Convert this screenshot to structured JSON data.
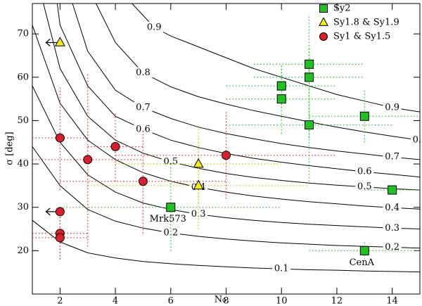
{
  "chart_data": {
    "type": "scatter",
    "x_label": "N₀",
    "y_label": "σ [deg]",
    "xlim": [
      1,
      15
    ],
    "ylim": [
      10,
      77
    ],
    "xticks": [
      2,
      4,
      6,
      8,
      10,
      12,
      14
    ],
    "yticks": [
      20,
      30,
      40,
      50,
      60,
      70
    ],
    "legend": "upper right",
    "contours": [
      {
        "level": 0.9,
        "x": [
          4.6,
          5.4,
          6,
          7,
          8,
          9,
          10,
          11,
          12,
          13,
          14,
          15
        ],
        "y": [
          77,
          71.5,
          69.5,
          67,
          64.5,
          62,
          60,
          58,
          56,
          54.5,
          53,
          52
        ]
      },
      {
        "level": 0.8,
        "x": [
          3.3,
          4,
          5,
          6,
          7,
          8,
          9,
          10,
          11,
          12,
          13,
          14,
          15
        ],
        "y": [
          77,
          68,
          61,
          57.8,
          55.5,
          53.8,
          52.3,
          51,
          49.7,
          48.5,
          47.4,
          46.4,
          45.5
        ]
      },
      {
        "level": 0.7,
        "x": [
          2.45,
          3,
          4,
          5,
          6,
          7,
          8,
          9,
          10,
          11,
          12,
          13,
          14,
          15
        ],
        "y": [
          77,
          66,
          57,
          53,
          50.5,
          48.5,
          47,
          45.8,
          44.7,
          43.8,
          43,
          42.3,
          41.6,
          41
        ]
      },
      {
        "level": 0.6,
        "x": [
          1.9,
          2,
          3,
          4,
          5,
          6,
          7,
          8,
          9,
          10,
          11,
          12,
          13,
          14,
          15
        ],
        "y": [
          77,
          72,
          58,
          51,
          48,
          45.5,
          43.8,
          42.4,
          41.3,
          40.4,
          39.6,
          38.9,
          38.2,
          37.6,
          37
        ]
      },
      {
        "level": 0.5,
        "x": [
          1.4,
          2,
          3,
          4,
          5,
          6,
          7,
          8,
          9,
          10,
          11,
          12,
          13,
          14,
          15
        ],
        "y": [
          77,
          62,
          51,
          45.5,
          42.5,
          40.5,
          39,
          37.8,
          36.9,
          36.2,
          35.6,
          35.1,
          34.7,
          34.3,
          34
        ]
      },
      {
        "level": 0.4,
        "x": [
          1,
          2,
          3,
          4,
          5,
          6,
          7,
          8,
          9,
          10,
          11,
          12,
          13,
          14,
          15
        ],
        "y": [
          72,
          54,
          45.5,
          41,
          38,
          36,
          34.6,
          33.5,
          32.6,
          31.9,
          31.3,
          30.8,
          30.3,
          29.9,
          29.6
        ]
      },
      {
        "level": 0.3,
        "x": [
          1,
          2,
          3,
          4,
          5,
          6,
          7,
          8,
          9,
          10,
          11,
          12,
          13,
          14,
          15
        ],
        "y": [
          58,
          45,
          37.5,
          33.5,
          31,
          29.5,
          28.4,
          27.6,
          27,
          26.5,
          26.1,
          25.8,
          25.5,
          25.2,
          25
        ]
      },
      {
        "level": 0.2,
        "x": [
          1,
          2,
          3,
          4,
          5,
          6,
          7,
          8,
          9,
          10,
          11,
          12,
          13,
          14,
          15
        ],
        "y": [
          44,
          35,
          29.5,
          26.8,
          25.2,
          24.1,
          23.3,
          22.7,
          22.2,
          21.8,
          21.5,
          21.2,
          21,
          20.8,
          20.6
        ]
      },
      {
        "level": 0.1,
        "x": [
          1,
          2,
          3,
          4,
          5,
          6,
          7,
          8,
          9,
          10,
          11,
          12,
          13,
          14,
          15
        ],
        "y": [
          27,
          22,
          19.5,
          18.3,
          17.5,
          17,
          16.6,
          16.3,
          16,
          15.8,
          15.6,
          15.5,
          15.3,
          15.2,
          15.1
        ]
      }
    ],
    "series": [
      {
        "name": "Sy2",
        "marker": "square",
        "color": "#22c022",
        "error_color": "#22cc22",
        "x": [
          11,
          10,
          10,
          11,
          11,
          13,
          14,
          6,
          13
        ],
        "y": [
          63,
          58,
          55,
          60,
          49,
          51,
          34,
          30,
          20
        ],
        "xerr": [
          2,
          2,
          2,
          2,
          3,
          2,
          1,
          4,
          2
        ],
        "yerr": [
          4,
          5,
          8,
          14,
          13,
          6,
          1,
          10,
          2
        ],
        "x_upper_limit": [
          false,
          false,
          false,
          false,
          false,
          false,
          false,
          false,
          false
        ]
      },
      {
        "name": "Sy1.8 & Sy1.9",
        "marker": "triangle",
        "color": "#f2ee1e",
        "error_color": "#cccc00",
        "x": [
          2,
          7,
          7
        ],
        "y": [
          68,
          40,
          35
        ],
        "xerr": [
          null,
          3,
          4
        ],
        "yerr": [
          null,
          9,
          10
        ],
        "x_upper_limit": [
          true,
          false,
          false
        ]
      },
      {
        "name": "Sy1 & Sy1.5",
        "marker": "circle",
        "color": "#d8202e",
        "error_color": "#e8303a",
        "x": [
          2,
          3,
          4,
          5,
          8,
          2,
          2,
          2
        ],
        "y": [
          46,
          41,
          44,
          36,
          42,
          29,
          24,
          23
        ],
        "xerr": [
          1,
          2,
          1,
          3,
          4,
          null,
          1,
          1
        ],
        "yerr": [
          12,
          20,
          8,
          12,
          10,
          null,
          6,
          5
        ],
        "x_upper_limit": [
          false,
          false,
          false,
          false,
          false,
          true,
          false,
          false
        ]
      }
    ],
    "annotations": [
      {
        "text": "Mrk573",
        "x": 6,
        "y": 30
      },
      {
        "text": "CenA",
        "x": 13,
        "y": 20
      }
    ]
  }
}
